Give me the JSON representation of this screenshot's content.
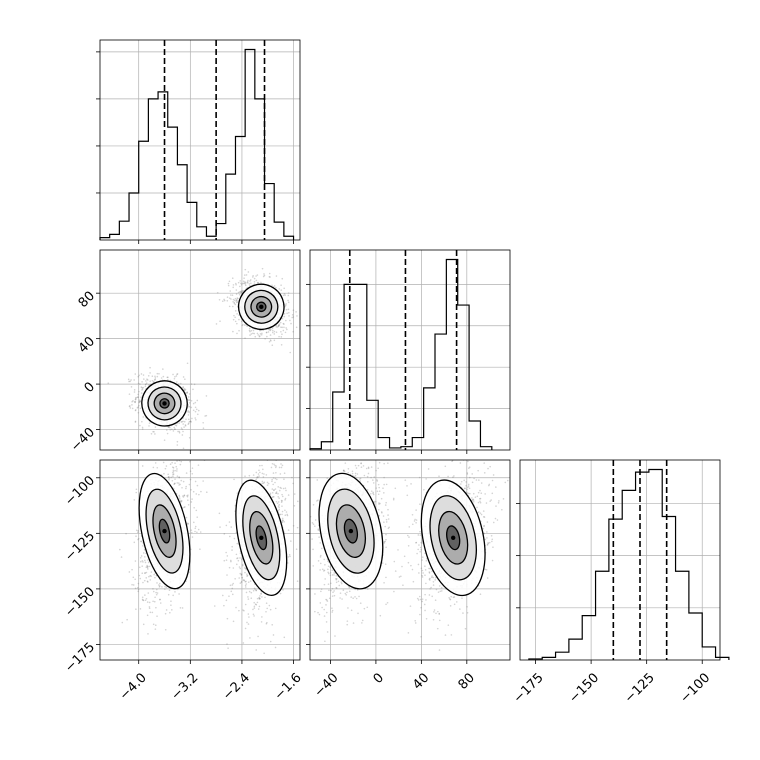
{
  "chart_data": {
    "type": "corner",
    "title": "",
    "grid": true,
    "colors": {
      "line": "#000000",
      "grid": "#b0b0b0",
      "points": "#808080"
    },
    "parameters": [
      {
        "axis_range": [
          -4.6,
          -1.5
        ],
        "ticks": [
          -4.0,
          -3.2,
          -2.4,
          -1.6
        ],
        "tick_labels": [
          "−4.0",
          "−3.2",
          "−2.4",
          "−1.6"
        ]
      },
      {
        "axis_range": [
          -58,
          118
        ],
        "ticks": [
          -40,
          0,
          40,
          80
        ],
        "tick_labels": [
          "−40",
          "0",
          "40",
          "80"
        ]
      },
      {
        "axis_range": [
          -182,
          -92
        ],
        "ticks": [
          -175,
          -150,
          -125,
          -100
        ],
        "tick_labels": [
          "−175",
          "−150",
          "−125",
          "−100"
        ]
      }
    ],
    "histograms": [
      {
        "parameter": 0,
        "bin_edges": [
          -4.6,
          -4.45,
          -4.3,
          -4.15,
          -4.0,
          -3.85,
          -3.7,
          -3.55,
          -3.4,
          -3.25,
          -3.1,
          -2.95,
          -2.8,
          -2.65,
          -2.5,
          -2.35,
          -2.2,
          -2.05,
          -1.9,
          -1.75,
          -1.6
        ],
        "counts": [
          0.5,
          1.2,
          4,
          10,
          21,
          30,
          31.5,
          24,
          16,
          8,
          2.8,
          0.8,
          3.5,
          14,
          22,
          40.5,
          30,
          12,
          3.8,
          0.8
        ],
        "quantiles": [
          -3.6,
          -2.8,
          -2.05
        ]
      },
      {
        "parameter": 1,
        "bin_edges": [
          -58,
          -48,
          -38,
          -28,
          -18,
          -8,
          2,
          12,
          22,
          32,
          42,
          52,
          62,
          72,
          82,
          92,
          102
        ],
        "counts": [
          0.3,
          2,
          14,
          40,
          40,
          12,
          3,
          0.5,
          0.8,
          3,
          15,
          28,
          46,
          35,
          7,
          0.8
        ],
        "quantiles": [
          -23,
          26,
          71
        ]
      },
      {
        "parameter": 2,
        "bin_edges": [
          -178,
          -172,
          -166,
          -160,
          -154,
          -148,
          -142,
          -136,
          -130,
          -124,
          -118,
          -112,
          -106,
          -100,
          -94,
          -88
        ],
        "counts": [
          0.2,
          0.5,
          1.5,
          4,
          8.5,
          17,
          27,
          32.5,
          36,
          36.5,
          27.5,
          17,
          9,
          2.5,
          0.5
        ],
        "quantiles": [
          -140,
          -128,
          -116
        ]
      }
    ],
    "contour_panels": [
      {
        "x_parameter": 0,
        "y_parameter": 1,
        "modes": [
          {
            "x": -3.6,
            "y": -17
          },
          {
            "x": -2.1,
            "y": 68
          }
        ]
      },
      {
        "x_parameter": 0,
        "y_parameter": 2,
        "modes": [
          {
            "x": -3.6,
            "y": -124
          },
          {
            "x": -2.1,
            "y": -127
          }
        ]
      },
      {
        "x_parameter": 1,
        "y_parameter": 2,
        "modes": [
          {
            "x": -22,
            "y": -124
          },
          {
            "x": 68,
            "y": -127
          }
        ]
      }
    ]
  }
}
